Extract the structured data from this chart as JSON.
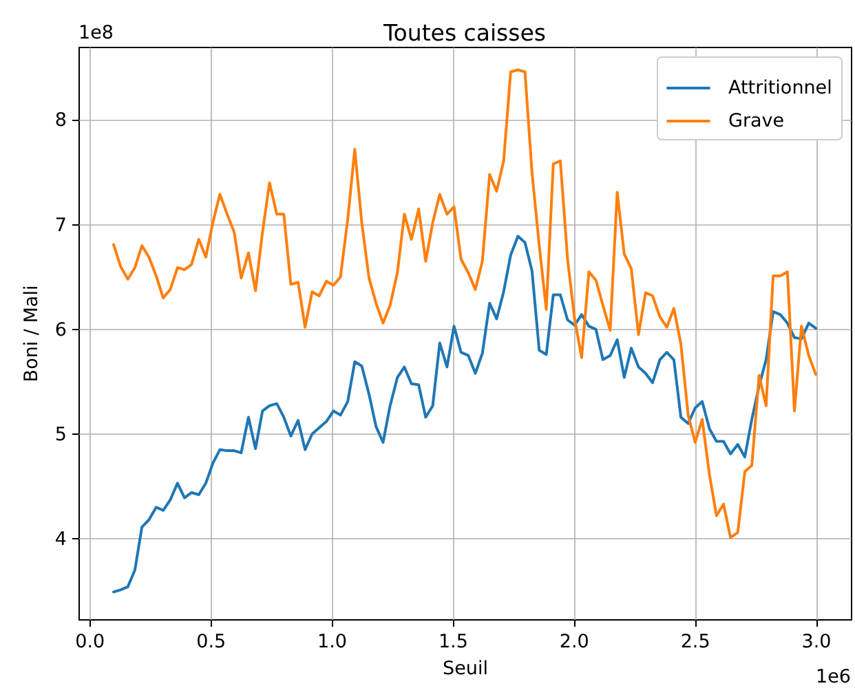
{
  "chart_data": {
    "type": "line",
    "title": "Toutes caisses",
    "xlabel": "Seuil",
    "ylabel": "Boni / Mali",
    "x": [
      0.1,
      0.129,
      0.159,
      0.188,
      0.217,
      0.246,
      0.276,
      0.305,
      0.334,
      0.364,
      0.393,
      0.422,
      0.452,
      0.481,
      0.51,
      0.539,
      0.569,
      0.598,
      0.627,
      0.657,
      0.686,
      0.715,
      0.744,
      0.774,
      0.803,
      0.832,
      0.862,
      0.891,
      0.92,
      0.949,
      0.979,
      1.008,
      1.037,
      1.067,
      1.096,
      1.125,
      1.155,
      1.184,
      1.213,
      1.242,
      1.272,
      1.301,
      1.33,
      1.36,
      1.389,
      1.418,
      1.447,
      1.477,
      1.506,
      1.535,
      1.565,
      1.594,
      1.623,
      1.653,
      1.682,
      1.711,
      1.74,
      1.77,
      1.799,
      1.828,
      1.858,
      1.887,
      1.916,
      1.945,
      1.975,
      2.004,
      2.033,
      2.063,
      2.092,
      2.121,
      2.151,
      2.18,
      2.209,
      2.238,
      2.268,
      2.297,
      2.326,
      2.356,
      2.385,
      2.414,
      2.443,
      2.473,
      2.502,
      2.531,
      2.561,
      2.59,
      2.619,
      2.648,
      2.678,
      2.707,
      2.736,
      2.766,
      2.795,
      2.824,
      2.854,
      2.883,
      2.912,
      2.941,
      2.971,
      3.0
    ],
    "series": [
      {
        "name": "Attritionnel",
        "color": "#1f77b4",
        "values": [
          3.49,
          3.51,
          3.54,
          3.7,
          4.11,
          4.18,
          4.3,
          4.27,
          4.37,
          4.53,
          4.39,
          4.44,
          4.42,
          4.53,
          4.72,
          4.85,
          4.84,
          4.84,
          4.82,
          5.16,
          4.86,
          5.22,
          5.27,
          5.29,
          5.16,
          4.98,
          5.13,
          4.85,
          5.0,
          5.06,
          5.12,
          5.22,
          5.18,
          5.31,
          5.69,
          5.65,
          5.38,
          5.07,
          4.92,
          5.27,
          5.54,
          5.64,
          5.48,
          5.47,
          5.16,
          5.27,
          5.87,
          5.64,
          6.03,
          5.78,
          5.75,
          5.58,
          5.77,
          6.25,
          6.1,
          6.36,
          6.71,
          6.89,
          6.83,
          6.56,
          5.8,
          5.76,
          6.33,
          6.33,
          6.09,
          6.04,
          6.14,
          6.03,
          6.0,
          5.71,
          5.75,
          5.9,
          5.54,
          5.82,
          5.64,
          5.58,
          5.49,
          5.71,
          5.78,
          5.71,
          5.16,
          5.1,
          5.25,
          5.31,
          5.05,
          4.93,
          4.93,
          4.81,
          4.9,
          4.78,
          5.14,
          5.46,
          5.71,
          6.17,
          6.14,
          6.06,
          5.92,
          5.91,
          6.06,
          6.01
        ]
      },
      {
        "name": "Grave",
        "color": "#ff7f0e",
        "values": [
          6.81,
          6.6,
          6.48,
          6.59,
          6.8,
          6.69,
          6.51,
          6.3,
          6.38,
          6.59,
          6.57,
          6.62,
          6.86,
          6.69,
          7.02,
          7.29,
          7.1,
          6.93,
          6.49,
          6.73,
          6.37,
          6.93,
          7.4,
          7.1,
          7.1,
          6.43,
          6.45,
          6.02,
          6.36,
          6.32,
          6.46,
          6.42,
          6.5,
          7.05,
          7.72,
          7.02,
          6.49,
          6.25,
          6.06,
          6.23,
          6.54,
          7.1,
          6.86,
          7.15,
          6.65,
          7.02,
          7.29,
          7.1,
          7.17,
          6.67,
          6.54,
          6.38,
          6.65,
          7.48,
          7.32,
          7.61,
          8.46,
          8.48,
          8.46,
          7.5,
          6.8,
          6.19,
          7.58,
          7.61,
          6.67,
          6.1,
          5.73,
          6.55,
          6.47,
          6.23,
          5.99,
          7.31,
          6.72,
          6.58,
          5.95,
          6.35,
          6.32,
          6.12,
          6.02,
          6.2,
          5.86,
          5.18,
          4.92,
          5.14,
          4.61,
          4.22,
          4.33,
          4.01,
          4.06,
          4.64,
          4.7,
          5.56,
          5.27,
          6.51,
          6.51,
          6.55,
          5.22,
          6.03,
          5.75,
          5.57
        ]
      }
    ],
    "xlim": [
      -0.045,
      3.145
    ],
    "ylim": [
      3.23,
      8.7
    ],
    "xticks": [
      {
        "value": 0,
        "label": "0.0"
      },
      0.5,
      {
        "value": 1,
        "label": "1.0"
      },
      1.5,
      {
        "value": 2,
        "label": "2.0"
      },
      2.5,
      {
        "value": 3,
        "label": "3.0"
      }
    ],
    "yticks": [
      4,
      5,
      6,
      7,
      8
    ],
    "annotations": [
      "1e8",
      "1e6"
    ],
    "grid": true,
    "legend": "top right",
    "line_style": "solid"
  }
}
